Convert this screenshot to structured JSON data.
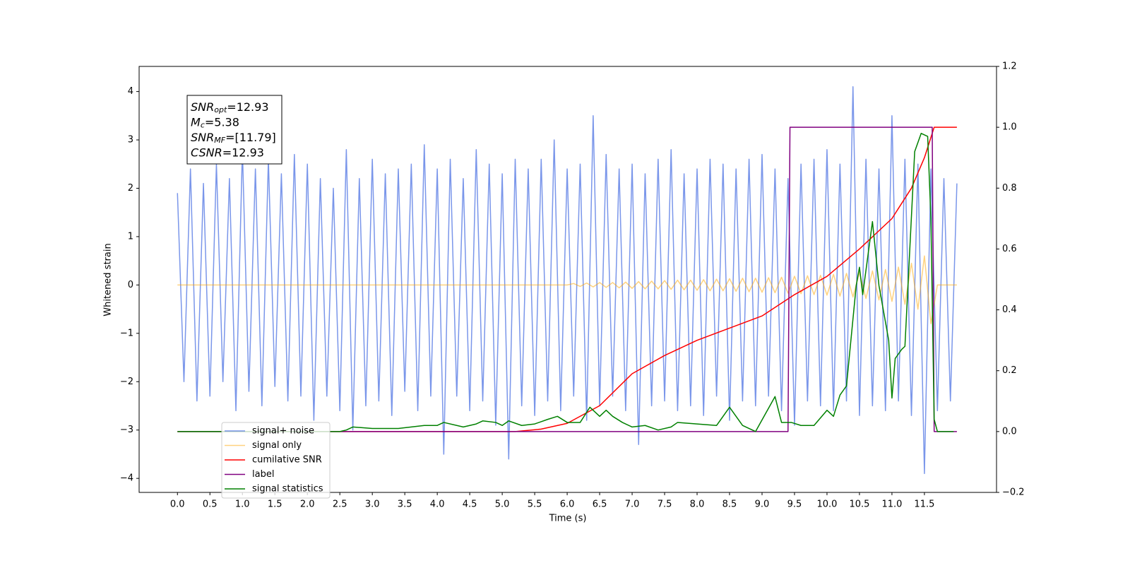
{
  "chart_data": {
    "type": "line",
    "xlabel": "Time (s)",
    "ylabel": "Whitened strain",
    "xlim": [
      -0.59,
      12.61
    ],
    "ylim": [
      -4.29,
      4.52
    ],
    "y2lim": [
      -0.2,
      1.2
    ],
    "xticks": [
      {
        "value": 0,
        "label": "0.0"
      },
      0.5,
      {
        "value": 1,
        "label": "1.0"
      },
      1.5,
      {
        "value": 2,
        "label": "2.0"
      },
      2.5,
      {
        "value": 3,
        "label": "3.0"
      },
      3.5,
      {
        "value": 4,
        "label": "4.0"
      },
      4.5,
      {
        "value": 5,
        "label": "5.0"
      },
      5.5,
      {
        "value": 6,
        "label": "6.0"
      },
      6.5,
      {
        "value": 7,
        "label": "7.0"
      },
      7.5,
      {
        "value": 8,
        "label": "8.0"
      },
      8.5,
      {
        "value": 9,
        "label": "9.0"
      },
      9.5,
      {
        "value": 10,
        "label": "10.0"
      },
      10.5,
      {
        "value": 11,
        "label": "11.0"
      },
      11.5
    ],
    "yticks": [
      {
        "value": -4,
        "label": "−4"
      },
      {
        "value": -3,
        "label": "−3"
      },
      {
        "value": -2,
        "label": "−2"
      },
      {
        "value": -1,
        "label": "−1"
      },
      0,
      1,
      2,
      3,
      4
    ],
    "y2ticks": [
      {
        "value": -0.2,
        "label": "−0.2"
      },
      {
        "value": 0,
        "label": "0.0"
      },
      0.2,
      0.4,
      0.6,
      0.8,
      {
        "value": 1,
        "label": "1.0"
      },
      1.2
    ],
    "annotation": [
      {
        "main": "SNR",
        "sub": "opt",
        "rest": "=12.93"
      },
      {
        "main": "M",
        "sub": "c",
        "rest": "=5.38"
      },
      {
        "main": "SNR",
        "sub": "MF",
        "rest": "=[11.79]"
      },
      {
        "main": "CSNR",
        "sub": "",
        "rest": "=12.93"
      }
    ],
    "x": [
      0,
      0.1,
      0.2,
      0.3,
      0.4,
      0.5,
      0.6,
      0.7,
      0.8,
      0.9,
      1,
      1.1,
      1.2,
      1.3,
      1.4,
      1.5,
      1.6,
      1.7,
      1.8,
      1.9,
      2,
      2.1,
      2.2,
      2.3,
      2.4,
      2.5,
      2.6,
      2.7,
      2.8,
      2.9,
      3,
      3.1,
      3.2,
      3.3,
      3.4,
      3.5,
      3.6,
      3.7,
      3.8,
      3.9,
      4,
      4.1,
      4.2,
      4.3,
      4.4,
      4.5,
      4.6,
      4.7,
      4.8,
      4.9,
      5,
      5.1,
      5.2,
      5.3,
      5.4,
      5.5,
      5.6,
      5.7,
      5.8,
      5.9,
      6,
      6.1,
      6.2,
      6.3,
      6.4,
      6.5,
      6.6,
      6.7,
      6.8,
      6.9,
      7,
      7.1,
      7.2,
      7.3,
      7.4,
      7.5,
      7.6,
      7.7,
      7.8,
      7.9,
      8,
      8.1,
      8.2,
      8.3,
      8.4,
      8.5,
      8.6,
      8.7,
      8.8,
      8.9,
      9,
      9.1,
      9.2,
      9.3,
      9.4,
      9.5,
      9.6,
      9.7,
      9.8,
      9.9,
      10,
      10.1,
      10.2,
      10.3,
      10.4,
      10.5,
      10.6,
      10.7,
      10.8,
      10.9,
      11,
      11.1,
      11.2,
      11.3,
      11.4,
      11.5,
      11.6,
      11.7,
      11.8,
      11.9,
      12
    ],
    "series": [
      {
        "name": "signal+ noise",
        "color": "#4169e1",
        "alpha": 0.7,
        "axis": "y",
        "values": [
          1.9,
          -2.0,
          2.4,
          -2.4,
          2.1,
          -2.3,
          2.5,
          -2.0,
          2.2,
          -2.6,
          2.8,
          -2.2,
          2.4,
          -2.5,
          2.6,
          -2.1,
          2.3,
          -2.4,
          2.7,
          -2.3,
          2.5,
          -2.8,
          2.2,
          -2.3,
          2.0,
          -2.6,
          2.8,
          -3.0,
          2.2,
          -2.5,
          2.6,
          -2.4,
          2.3,
          -2.7,
          2.4,
          -2.2,
          2.5,
          -2.6,
          2.9,
          -2.3,
          2.4,
          -3.5,
          2.6,
          -2.3,
          2.2,
          -2.6,
          2.8,
          -2.4,
          2.5,
          -2.9,
          2.3,
          -3.6,
          2.6,
          -2.5,
          2.4,
          -2.7,
          2.6,
          -2.4,
          3.0,
          -2.6,
          2.4,
          -2.3,
          2.5,
          -2.8,
          3.5,
          -2.5,
          2.7,
          -2.3,
          2.4,
          -2.6,
          2.5,
          -3.3,
          2.3,
          -2.5,
          2.6,
          -2.4,
          2.8,
          -2.6,
          2.3,
          -2.5,
          2.4,
          -2.7,
          2.6,
          -2.3,
          2.5,
          -2.8,
          2.4,
          -2.4,
          2.6,
          -2.5,
          2.7,
          -2.3,
          2.4,
          -2.6,
          2.2,
          -2.9,
          2.5,
          -2.4,
          2.6,
          -2.5,
          2.8,
          -2.6,
          2.5,
          -2.4,
          4.1,
          -2.7,
          2.6,
          -2.5,
          2.4,
          -2.6,
          3.5,
          -2.4,
          2.6,
          -2.7,
          2.5,
          -3.9,
          2.4,
          -2.6,
          2.2,
          -2.4,
          2.1
        ]
      },
      {
        "name": "signal only",
        "color": "#ffa500",
        "alpha": 0.5,
        "axis": "y",
        "values": [
          0,
          0,
          0,
          0,
          0,
          0,
          0,
          0,
          0,
          0,
          0,
          0,
          0,
          0,
          0,
          0,
          0,
          0,
          0,
          0,
          0,
          0,
          0,
          0,
          0,
          0,
          0,
          0,
          0,
          0,
          0,
          0,
          0,
          0,
          0,
          0,
          0,
          0,
          0,
          0,
          0,
          0,
          0,
          0,
          0,
          0,
          0,
          0,
          0,
          0,
          0,
          0,
          0,
          0,
          0,
          0,
          0,
          0,
          0,
          0,
          0,
          0.03,
          -0.03,
          0.04,
          -0.04,
          0.05,
          -0.05,
          0.05,
          -0.06,
          0.06,
          -0.07,
          0.07,
          -0.08,
          0.08,
          -0.08,
          0.09,
          -0.09,
          0.1,
          -0.1,
          0.1,
          -0.11,
          0.11,
          -0.12,
          0.12,
          -0.12,
          0.13,
          -0.13,
          0.14,
          -0.14,
          0.14,
          -0.15,
          0.15,
          -0.16,
          0.16,
          -0.17,
          0.18,
          -0.18,
          0.19,
          -0.2,
          0.2,
          -0.21,
          0.22,
          -0.23,
          0.24,
          -0.25,
          0.26,
          -0.28,
          0.29,
          -0.31,
          0.32,
          -0.34,
          0.37,
          -0.4,
          0.45,
          -0.5,
          0.6,
          -0.8,
          0,
          0,
          0,
          0
        ]
      },
      {
        "name": "cumilative SNR",
        "color": "#ff0000",
        "alpha": 1,
        "axis": "y2",
        "x": [
          0,
          5.2,
          5.6,
          6.0,
          6.5,
          7.0,
          7.5,
          8.0,
          8.5,
          9.0,
          9.5,
          10.0,
          10.5,
          11.0,
          11.3,
          11.5,
          11.65,
          12.0
        ],
        "values": [
          0,
          0,
          0.008,
          0.027,
          0.085,
          0.19,
          0.25,
          0.3,
          0.34,
          0.38,
          0.45,
          0.51,
          0.6,
          0.7,
          0.8,
          0.9,
          1.0,
          1.0
        ]
      },
      {
        "name": "label",
        "color": "#800080",
        "alpha": 1,
        "axis": "y2",
        "x": [
          0,
          9.4,
          9.43,
          11.62,
          11.65,
          12.0
        ],
        "values": [
          0,
          0,
          1,
          1,
          0,
          0
        ]
      },
      {
        "name": "signal statistics",
        "color": "#008000",
        "alpha": 1,
        "axis": "y2",
        "x": [
          0,
          2.5,
          2.6,
          2.7,
          3.0,
          3.4,
          3.6,
          3.8,
          4.0,
          4.1,
          4.4,
          4.6,
          4.7,
          4.9,
          5.0,
          5.1,
          5.3,
          5.5,
          5.7,
          5.85,
          6.0,
          6.2,
          6.35,
          6.5,
          6.6,
          6.7,
          6.85,
          7.0,
          7.2,
          7.4,
          7.6,
          7.7,
          8.0,
          8.3,
          8.5,
          8.7,
          8.9,
          9.2,
          9.3,
          9.45,
          9.6,
          9.8,
          10.0,
          10.1,
          10.2,
          10.3,
          10.45,
          10.5,
          10.55,
          10.7,
          10.8,
          10.95,
          11.0,
          11.05,
          11.15,
          11.2,
          11.35,
          11.45,
          11.55,
          11.6,
          11.65,
          11.7,
          11.95
        ],
        "values": [
          0,
          0,
          0.005,
          0.015,
          0.01,
          0.01,
          0.015,
          0.02,
          0.02,
          0.03,
          0.015,
          0.025,
          0.035,
          0.03,
          0.02,
          0.035,
          0.02,
          0.025,
          0.04,
          0.05,
          0.03,
          0.03,
          0.08,
          0.05,
          0.07,
          0.05,
          0.03,
          0.015,
          0.02,
          0.005,
          0.015,
          0.03,
          0.025,
          0.02,
          0.08,
          0.02,
          0,
          0.115,
          0.03,
          0.03,
          0.02,
          0.02,
          0.07,
          0.05,
          0.12,
          0.15,
          0.48,
          0.54,
          0.45,
          0.69,
          0.48,
          0.3,
          0.11,
          0.24,
          0.27,
          0.28,
          0.92,
          0.98,
          0.97,
          0.7,
          0.04,
          0,
          0
        ]
      }
    ]
  }
}
